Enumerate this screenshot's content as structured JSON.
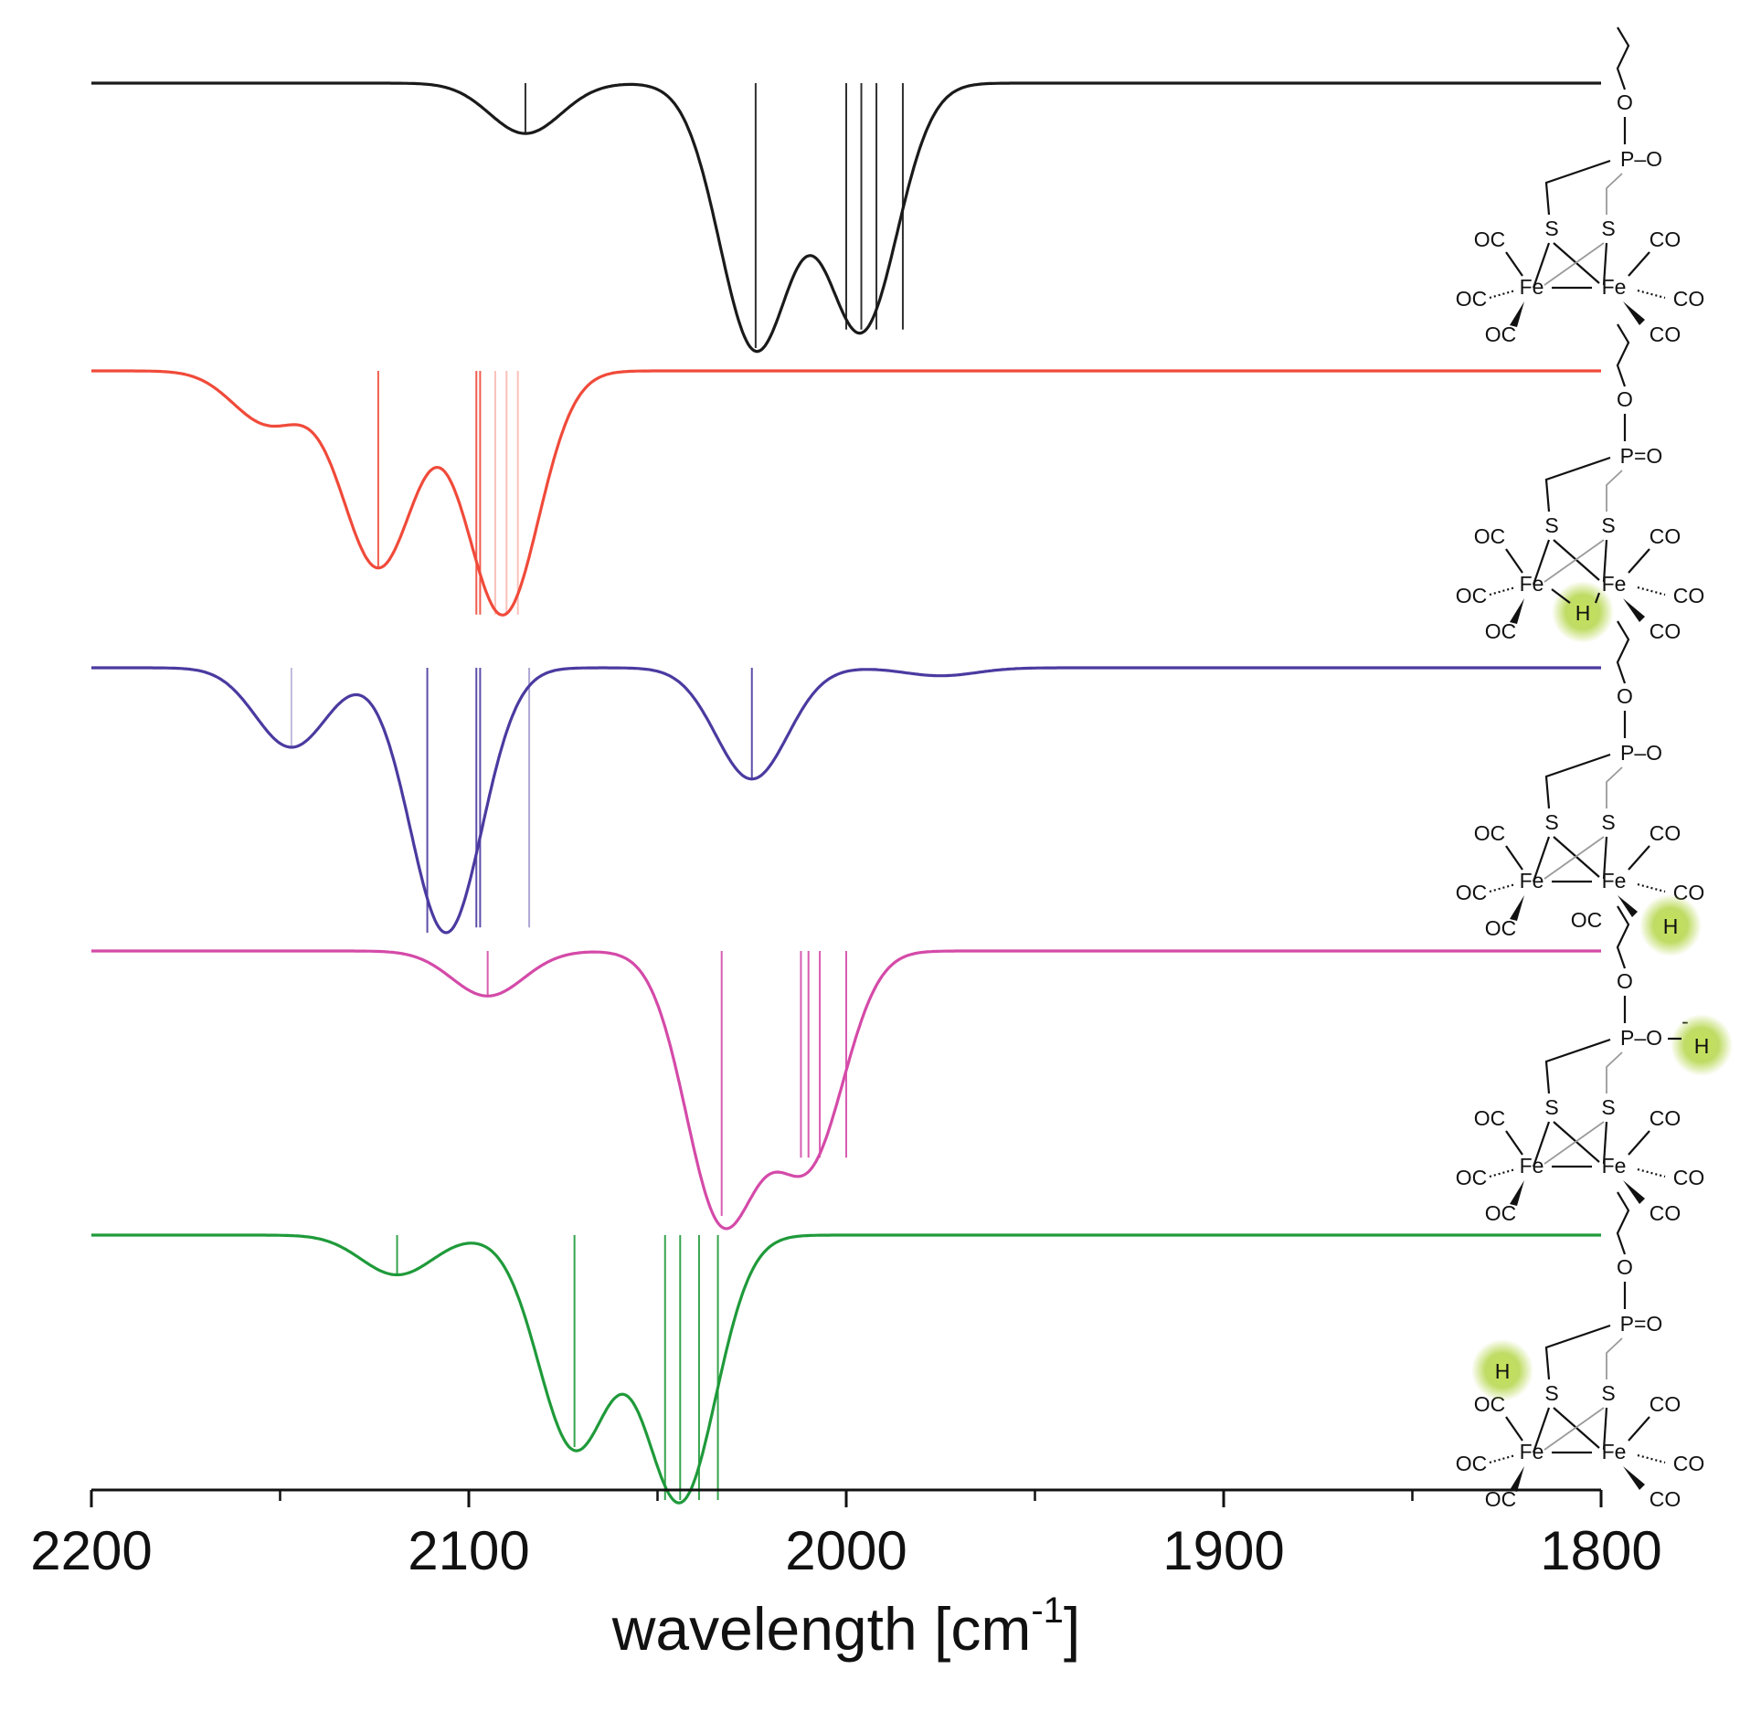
{
  "chart_data": {
    "type": "line",
    "title": "",
    "xlabel": "wavelength [cm",
    "xlabel_superscript": "-1",
    "xlabel_close": "]",
    "xlim": [
      2200,
      1800
    ],
    "x_ticks": [
      2200,
      2100,
      2000,
      1900,
      1800
    ],
    "x_tick_labels": [
      "2200",
      "2100",
      "2000",
      "1900",
      "1800"
    ],
    "x_minor_ticks": [
      2150,
      2050,
      1950,
      1850
    ],
    "yaxis_visible": false,
    "grid": false,
    "legend": "none",
    "series": [
      {
        "color": "#1a1a1a",
        "baseline": 0,
        "peaks": [
          {
            "x": 2085,
            "depth": 0.19
          },
          {
            "x": 2024,
            "depth": 1.0
          },
          {
            "x": 1996,
            "depth": 0.93
          }
        ],
        "sticks": [
          {
            "x": 2085,
            "strength": 0.19,
            "opacity": 0.9
          },
          {
            "x": 2024,
            "strength": 1.0,
            "opacity": 0.9
          },
          {
            "x": 2000,
            "strength": 0.93,
            "opacity": 0.9
          },
          {
            "x": 1996,
            "strength": 0.93,
            "opacity": 0.9
          },
          {
            "x": 1992,
            "strength": 0.93,
            "opacity": 0.9
          },
          {
            "x": 1985,
            "strength": 0.93,
            "opacity": 0.9
          }
        ],
        "molecule": {
          "p_bond": "P–O",
          "fe_left": "Fe",
          "fe_right": "Fe",
          "s_left": "S",
          "s_right": "S",
          "co": "CO",
          "oc": "OC",
          "o": "O",
          "hydride": "",
          "hydride_site": "none"
        }
      },
      {
        "color": "#f04a3a",
        "baseline": 0,
        "peaks": [
          {
            "x": 2153,
            "depth": 0.2
          },
          {
            "x": 2124,
            "depth": 0.74
          },
          {
            "x": 2091,
            "depth": 0.92
          }
        ],
        "sticks": [
          {
            "x": 2124,
            "strength": 0.74,
            "opacity": 0.9
          },
          {
            "x": 2098,
            "strength": 0.92,
            "opacity": 0.9
          },
          {
            "x": 2097,
            "strength": 0.92,
            "opacity": 0.9
          },
          {
            "x": 2093,
            "strength": 0.92,
            "opacity": 0.35
          },
          {
            "x": 2090,
            "strength": 0.92,
            "opacity": 0.35
          },
          {
            "x": 2087,
            "strength": 0.92,
            "opacity": 0.35
          }
        ],
        "molecule": {
          "p_bond": "P=O",
          "fe_left": "Fe",
          "fe_right": "Fe",
          "s_left": "S",
          "s_right": "S",
          "co": "CO",
          "oc": "OC",
          "o": "O",
          "hydride": "H",
          "hydride_site": "bridge"
        }
      },
      {
        "color": "#4b3aa0",
        "baseline": 0,
        "peaks": [
          {
            "x": 2147,
            "depth": 0.3
          },
          {
            "x": 2106,
            "depth": 1.0
          },
          {
            "x": 2025,
            "depth": 0.42
          },
          {
            "x": 1975,
            "depth": 0.03
          }
        ],
        "sticks": [
          {
            "x": 2147,
            "strength": 0.3,
            "opacity": 0.35
          },
          {
            "x": 2111,
            "strength": 1.0,
            "opacity": 0.9
          },
          {
            "x": 2098,
            "strength": 0.98,
            "opacity": 0.9
          },
          {
            "x": 2097,
            "strength": 0.98,
            "opacity": 0.9
          },
          {
            "x": 2084,
            "strength": 0.98,
            "opacity": 0.45
          },
          {
            "x": 2025,
            "strength": 0.42,
            "opacity": 0.9
          }
        ],
        "molecule": {
          "p_bond": "P–O",
          "fe_left": "Fe",
          "fe_right": "Fe",
          "s_left": "S",
          "s_right": "S",
          "co": "CO",
          "oc": "OC",
          "o": "O",
          "hydride": "H",
          "hydride_site": "terminal"
        }
      },
      {
        "color": "#d44aa8",
        "baseline": 0,
        "peaks": [
          {
            "x": 2095,
            "depth": 0.17
          },
          {
            "x": 2033,
            "depth": 1.0
          },
          {
            "x": 2010,
            "depth": 0.78
          }
        ],
        "sticks": [
          {
            "x": 2095,
            "strength": 0.17,
            "opacity": 0.9
          },
          {
            "x": 2033,
            "strength": 1.0,
            "opacity": 0.9
          },
          {
            "x": 2012,
            "strength": 0.78,
            "opacity": 0.9
          },
          {
            "x": 2010,
            "strength": 0.78,
            "opacity": 0.9
          },
          {
            "x": 2007,
            "strength": 0.78,
            "opacity": 0.9
          },
          {
            "x": 2000,
            "strength": 0.78,
            "opacity": 0.9
          }
        ],
        "molecule": {
          "p_bond": "P–O",
          "p_charge": "-",
          "fe_left": "Fe",
          "fe_right": "Fe",
          "s_left": "S",
          "s_right": "S",
          "co": "CO",
          "oc": "OC",
          "o": "O",
          "hydride": "H",
          "hydride_site": "phosphate"
        }
      },
      {
        "color": "#1f9a3a",
        "baseline": 0,
        "peaks": [
          {
            "x": 2119,
            "depth": 0.15
          },
          {
            "x": 2072,
            "depth": 0.8
          },
          {
            "x": 2044,
            "depth": 1.0
          }
        ],
        "sticks": [
          {
            "x": 2119,
            "strength": 0.15,
            "opacity": 0.9
          },
          {
            "x": 2072,
            "strength": 0.8,
            "opacity": 0.9
          },
          {
            "x": 2048,
            "strength": 1.0,
            "opacity": 0.9
          },
          {
            "x": 2044,
            "strength": 1.0,
            "opacity": 0.9
          },
          {
            "x": 2039,
            "strength": 1.0,
            "opacity": 0.9
          },
          {
            "x": 2034,
            "strength": 1.0,
            "opacity": 0.9
          }
        ],
        "molecule": {
          "p_bond": "P=O",
          "fe_left": "Fe",
          "fe_right": "Fe",
          "s_left": "S",
          "s_right": "S",
          "co": "CO",
          "oc": "OC",
          "o": "O",
          "hydride": "H",
          "hydride_site": "sulfur"
        }
      }
    ]
  },
  "colors": {
    "axis": "#111111",
    "hydride_glow": "#b5d64a"
  }
}
